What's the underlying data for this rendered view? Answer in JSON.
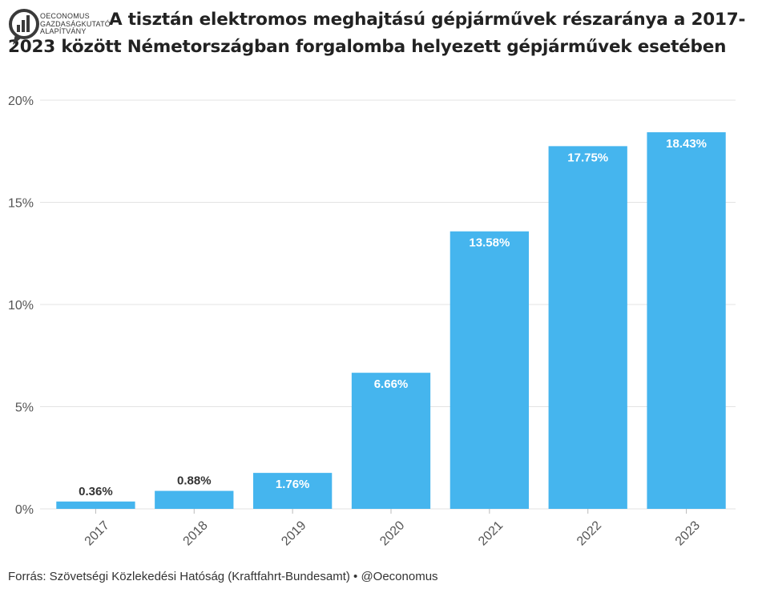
{
  "brand": {
    "lines": [
      "OECONOMUS",
      "GAZDASÁGKUTATÓ",
      "ALAPÍTVÁNY"
    ]
  },
  "title": "A tisztán elektromos meghajtású gépjárművek részaránya a 2017-2023 között Németországban forgalomba helyezett gépjárművek esetében",
  "source": "Forrás: Szövetségi Közlekedési Hatóság (Kraftfahrt-Bundesamt) • @Oeconomus",
  "colors": {
    "bar": "#45b5ee",
    "grid": "#e3e3e3",
    "axis": "#555555"
  },
  "chart_data": {
    "type": "bar",
    "categories": [
      "2017",
      "2018",
      "2019",
      "2020",
      "2021",
      "2022",
      "2023"
    ],
    "values": [
      0.36,
      0.88,
      1.76,
      6.66,
      13.58,
      17.75,
      18.43
    ],
    "data_labels": [
      "0.36%",
      "0.88%",
      "1.76%",
      "6.66%",
      "13.58%",
      "17.75%",
      "18.43%"
    ],
    "y_ticks": [
      0,
      5,
      10,
      15,
      20
    ],
    "y_tick_labels": [
      "0%",
      "5%",
      "10%",
      "15%",
      "20%"
    ],
    "ylim": [
      0,
      20
    ],
    "grid": true,
    "legend": "none"
  }
}
